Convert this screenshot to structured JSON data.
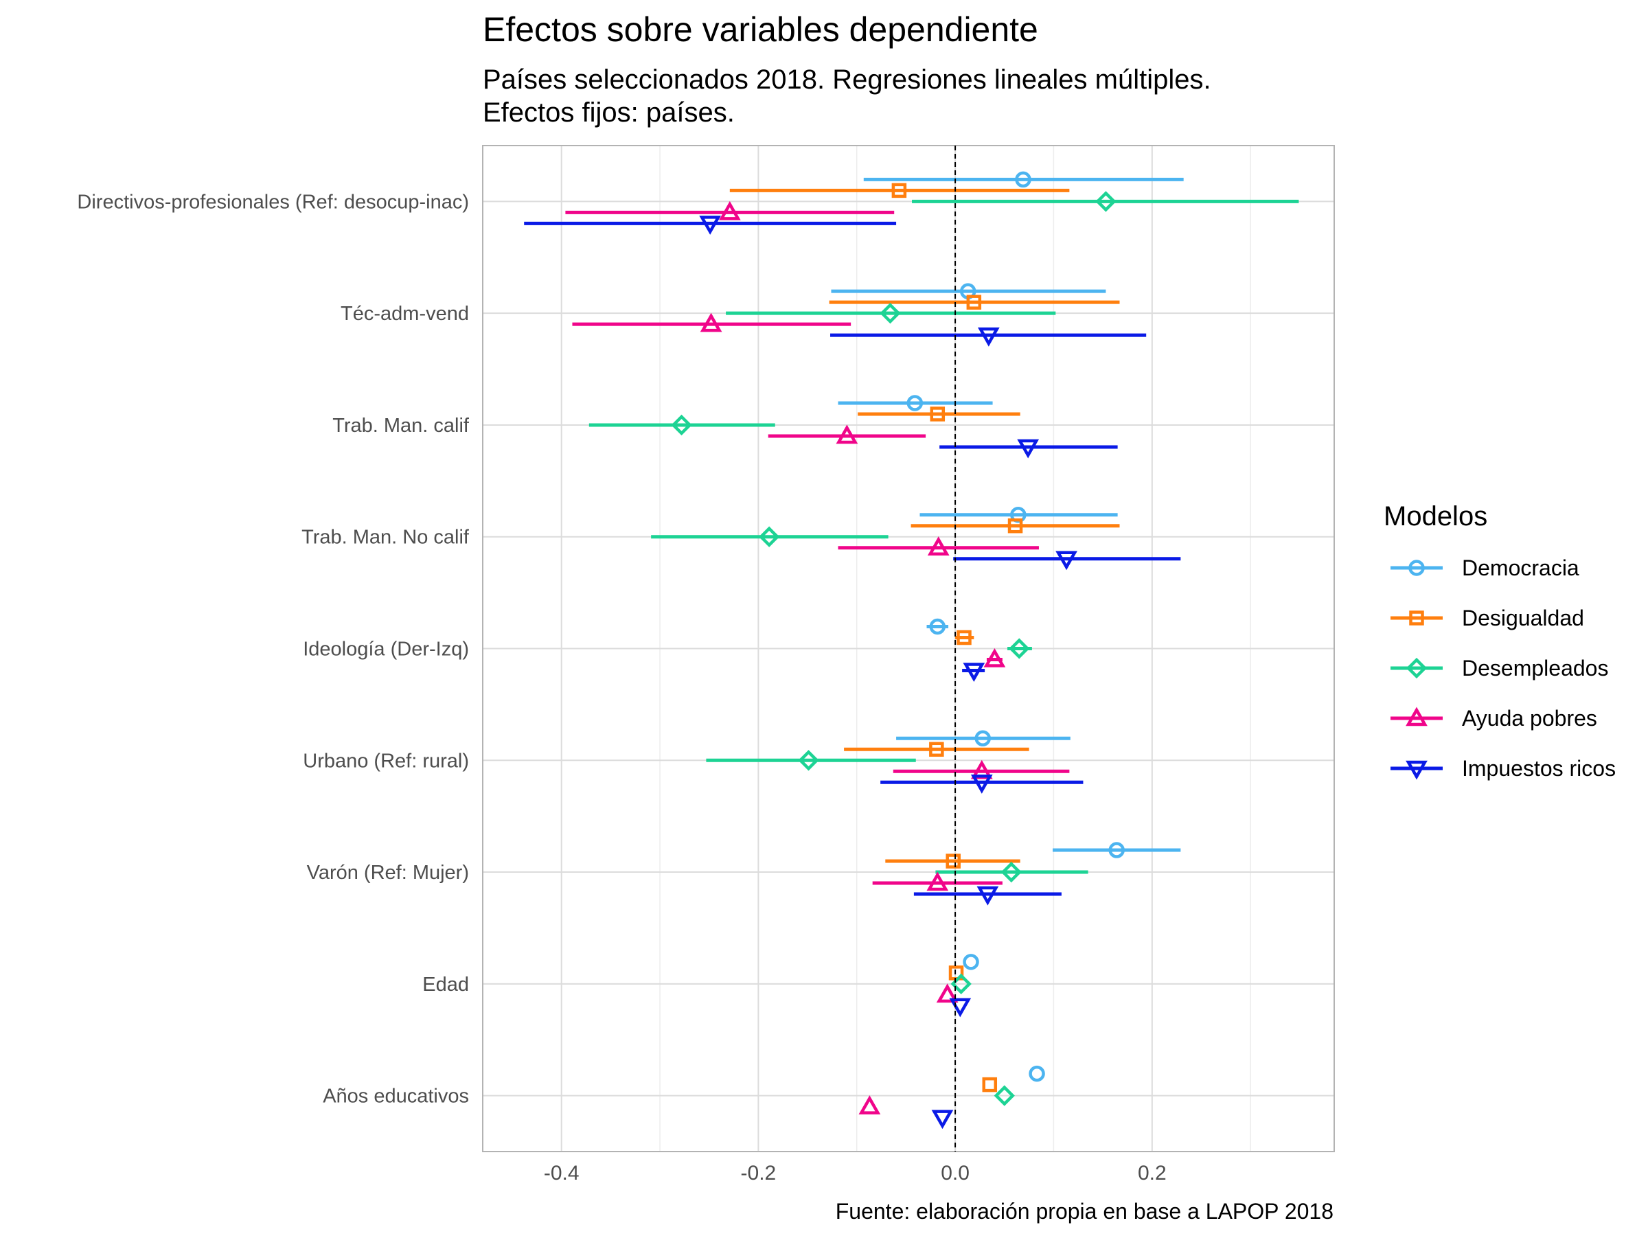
{
  "title": "Efectos sobre variables dependiente",
  "subtitle_lines": [
    "Países seleccionados 2018. Regresiones lineales múltiples.",
    "Efectos fijos: países."
  ],
  "caption": "Fuente: elaboración propia en base a LAPOP 2018",
  "legend": {
    "title": "Modelos",
    "position": "right"
  },
  "chart_data": {
    "type": "scatter",
    "orientation": "horizontal-dot-whisker",
    "title": "Efectos sobre variables dependiente",
    "subtitle": "Países seleccionados 2018. Regresiones lineales múltiples. Efectos fijos: países.",
    "xlim": [
      -0.48,
      0.385
    ],
    "xticks": [
      -0.4,
      -0.2,
      0.0,
      0.2
    ],
    "xtick_labels": [
      "-0.4",
      "-0.2",
      "0.0",
      "0.2"
    ],
    "reference_line": 0,
    "grid": true,
    "categories": [
      "Directivos-profesionales (Ref: desocup-inac)",
      "Téc-adm-vend",
      "Trab. Man. calif",
      "Trab. Man. No calif",
      "Ideología (Der-Izq)",
      "Urbano (Ref: rural)",
      "Varón (Ref: Mujer)",
      "Edad",
      "Años educativos"
    ],
    "series": [
      {
        "name": "Democracia",
        "color": "#4cb4f0",
        "marker": "circle",
        "estimates": [
          0.069,
          0.013,
          -0.041,
          0.064,
          -0.018,
          0.028,
          0.164,
          0.016,
          0.083
        ],
        "ci_low": [
          -0.093,
          -0.126,
          -0.119,
          -0.036,
          -0.029,
          -0.06,
          0.099,
          0.016,
          0.083
        ],
        "ci_high": [
          0.232,
          0.153,
          0.038,
          0.165,
          -0.007,
          0.117,
          0.229,
          0.016,
          0.083
        ]
      },
      {
        "name": "Desigualdad",
        "color": "#ff7f0e",
        "marker": "square",
        "estimates": [
          -0.057,
          0.019,
          -0.018,
          0.061,
          0.009,
          -0.019,
          -0.002,
          0.001,
          0.035
        ],
        "ci_low": [
          -0.229,
          -0.128,
          -0.099,
          -0.045,
          0.0,
          -0.113,
          -0.071,
          0.001,
          0.035
        ],
        "ci_high": [
          0.116,
          0.167,
          0.066,
          0.167,
          0.019,
          0.075,
          0.066,
          0.001,
          0.035
        ]
      },
      {
        "name": "Desempleados",
        "color": "#1dd394",
        "marker": "diamond",
        "estimates": [
          0.153,
          -0.066,
          -0.278,
          -0.189,
          0.065,
          -0.149,
          0.057,
          0.006,
          0.05
        ],
        "ci_low": [
          -0.044,
          -0.233,
          -0.372,
          -0.309,
          0.053,
          -0.253,
          -0.02,
          0.006,
          0.05
        ],
        "ci_high": [
          0.349,
          0.102,
          -0.183,
          -0.068,
          0.078,
          -0.04,
          0.135,
          0.006,
          0.05
        ]
      },
      {
        "name": "Ayuda pobres",
        "color": "#f0058a",
        "marker": "triangle-up",
        "estimates": [
          -0.229,
          -0.248,
          -0.11,
          -0.017,
          0.04,
          0.027,
          -0.018,
          -0.008,
          -0.087
        ],
        "ci_low": [
          -0.396,
          -0.389,
          -0.19,
          -0.119,
          0.032,
          -0.063,
          -0.084,
          -0.008,
          -0.087
        ],
        "ci_high": [
          -0.062,
          -0.106,
          -0.03,
          0.085,
          0.048,
          0.116,
          0.048,
          -0.008,
          -0.087
        ]
      },
      {
        "name": "Impuestos ricos",
        "color": "#0a1ae6",
        "marker": "triangle-down",
        "estimates": [
          -0.249,
          0.034,
          0.074,
          0.113,
          0.019,
          0.027,
          0.033,
          0.005,
          -0.013
        ],
        "ci_low": [
          -0.438,
          -0.127,
          -0.016,
          -0.002,
          0.007,
          -0.076,
          -0.042,
          0.005,
          -0.013
        ],
        "ci_high": [
          -0.06,
          0.194,
          0.165,
          0.229,
          0.03,
          0.13,
          0.108,
          0.005,
          -0.013
        ]
      }
    ]
  }
}
